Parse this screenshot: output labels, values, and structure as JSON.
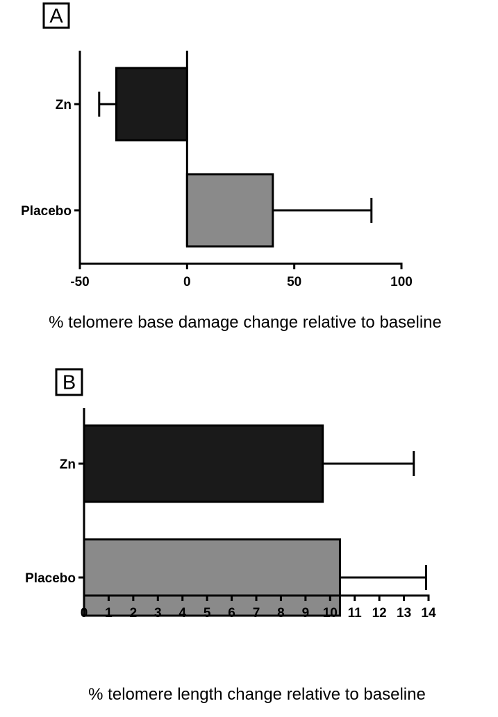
{
  "chart_data": [
    {
      "type": "bar",
      "orientation": "horizontal",
      "panel_label": "A",
      "categories": [
        "Zn",
        "Placebo"
      ],
      "values": [
        -33,
        40
      ],
      "error_bars": [
        8,
        46
      ],
      "bar_colors": [
        "#1a1a1a",
        "#8a8a8a"
      ],
      "xlabel": "% telomere base damage change relative to baseline",
      "xlim": [
        -50,
        100
      ],
      "xticks": [
        -50,
        0,
        50,
        100
      ],
      "grid": false
    },
    {
      "type": "bar",
      "orientation": "horizontal",
      "panel_label": "B",
      "categories": [
        "Zn",
        "Placebo"
      ],
      "values": [
        9.7,
        10.4
      ],
      "error_bars": [
        3.7,
        3.5
      ],
      "bar_colors": [
        "#1a1a1a",
        "#8a8a8a"
      ],
      "xlabel": "% telomere length change relative to baseline",
      "xlim": [
        0,
        14
      ],
      "xticks": [
        0,
        1,
        2,
        3,
        4,
        5,
        6,
        7,
        8,
        9,
        10,
        11,
        12,
        13,
        14
      ],
      "grid": false
    }
  ]
}
